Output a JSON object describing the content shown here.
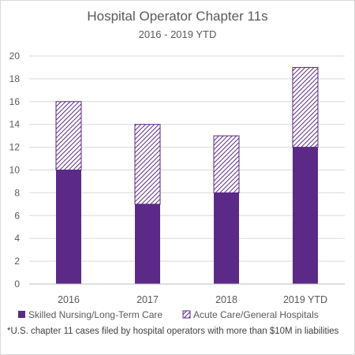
{
  "chart_data": {
    "type": "bar",
    "stacked": true,
    "title": "Hospital Operator Chapter 11s",
    "subtitle": "2016 - 2019 YTD",
    "categories": [
      "2016",
      "2017",
      "2018",
      "2019 YTD"
    ],
    "series": [
      {
        "name": "Skilled Nursing/Long-Term Care",
        "values": [
          10,
          7,
          8,
          12
        ],
        "color": "#5b2a86",
        "pattern": "solid"
      },
      {
        "name": "Acute Care/General Hospitals",
        "values": [
          6,
          7,
          5,
          7
        ],
        "color": "#5b2a86",
        "pattern": "diagonal-hatch"
      }
    ],
    "yticks": [
      "0",
      "2",
      "4",
      "6",
      "8",
      "10",
      "12",
      "14",
      "16",
      "18",
      "20"
    ],
    "ylim": [
      0,
      20
    ],
    "grid": true,
    "legend": "bottom"
  },
  "footnote": "*U.S. chapter 11 cases filed by hospital operators  with more than $10M in liabilities"
}
